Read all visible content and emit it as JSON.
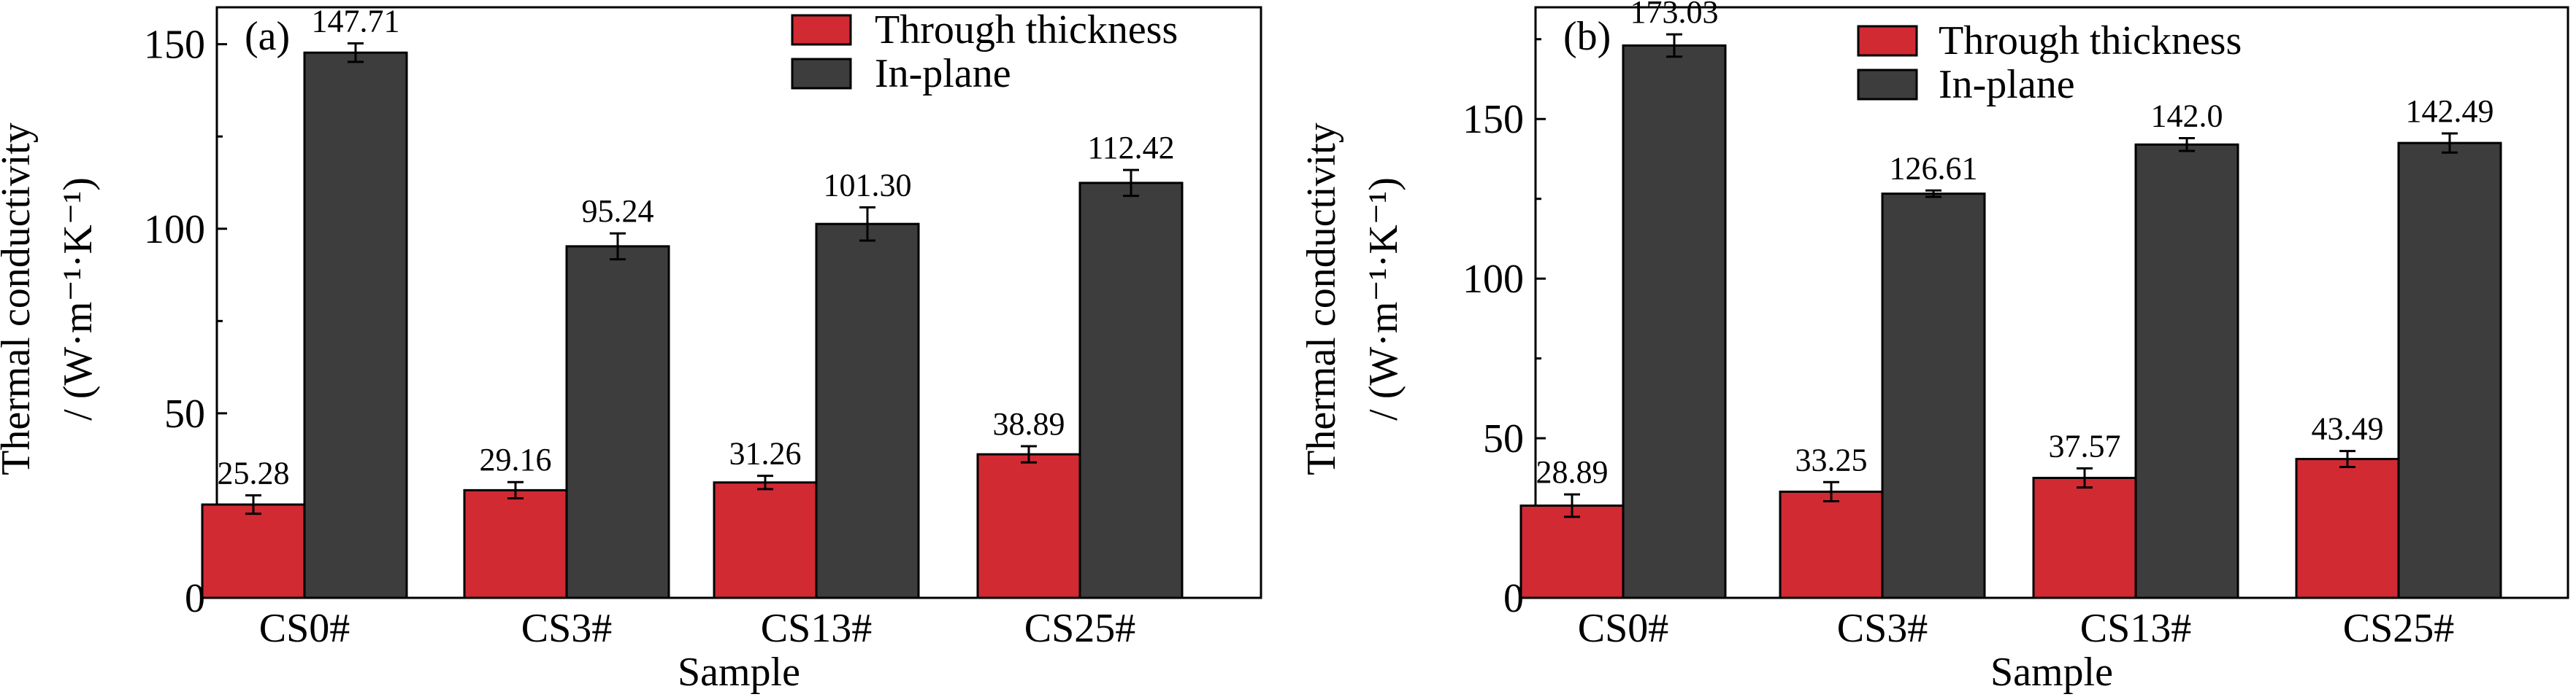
{
  "colors": {
    "through_thickness": "#d12a33",
    "in_plane": "#3d3d3d",
    "axis": "#000000",
    "background": "#ffffff"
  },
  "chart_data": [
    {
      "type": "bar",
      "panel_label": "(a)",
      "categories": [
        "CS0#",
        "CS3#",
        "CS13#",
        "CS25#"
      ],
      "xlabel": "Sample",
      "ylabel_line1": "Thermal conductivity",
      "ylabel_line2": "/ (W·m⁻¹·K⁻¹)",
      "ylim": [
        0,
        160
      ],
      "yticks": [
        0,
        50,
        100,
        150
      ],
      "legend_position": "top-right",
      "grid": false,
      "series": [
        {
          "name": "Through thickness",
          "values": [
            25.28,
            29.16,
            31.26,
            38.89
          ],
          "labels": [
            "25.28",
            "29.16",
            "31.26",
            "38.89"
          ],
          "errors": [
            2.5,
            2.2,
            1.8,
            2.2
          ]
        },
        {
          "name": "In-plane",
          "values": [
            147.71,
            95.24,
            101.3,
            112.42
          ],
          "labels": [
            "147.71",
            "95.24",
            "101.30",
            "112.42"
          ],
          "errors": [
            2.5,
            3.5,
            4.5,
            3.5
          ]
        }
      ]
    },
    {
      "type": "bar",
      "panel_label": "(b)",
      "categories": [
        "CS0#",
        "CS3#",
        "CS13#",
        "CS25#"
      ],
      "xlabel": "Sample",
      "ylabel_line1": "Thermal conductivity",
      "ylabel_line2": "/ (W·m⁻¹·K⁻¹)",
      "ylim": [
        0,
        185
      ],
      "yticks": [
        0,
        50,
        100,
        150
      ],
      "legend_position": "top-right",
      "grid": false,
      "series": [
        {
          "name": "Through thickness",
          "values": [
            28.89,
            33.25,
            37.57,
            43.49
          ],
          "labels": [
            "28.89",
            "33.25",
            "37.57",
            "43.49"
          ],
          "errors": [
            3.5,
            3.0,
            3.0,
            2.5
          ]
        },
        {
          "name": "In-plane",
          "values": [
            173.03,
            126.61,
            142.0,
            142.49
          ],
          "labels": [
            "173.03",
            "126.61",
            "142.0",
            "142.49"
          ],
          "errors": [
            3.5,
            1.0,
            2.0,
            3.0
          ]
        }
      ]
    }
  ]
}
